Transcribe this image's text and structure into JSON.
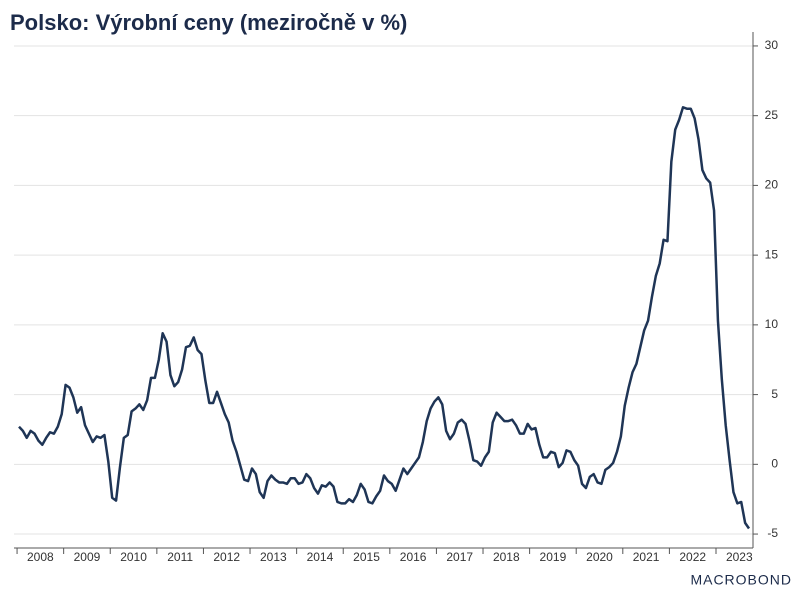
{
  "chart_data": {
    "type": "line",
    "title": "Polsko: Výrobní ceny (meziročně v %)",
    "source_logo": "MACROBOND",
    "categories": [
      null,
      null,
      null,
      null,
      null,
      null,
      "2008",
      null,
      null,
      null,
      null,
      null,
      null,
      null,
      null,
      null,
      null,
      null,
      "2009",
      null,
      null,
      null,
      null,
      null,
      null,
      null,
      null,
      null,
      null,
      null,
      "2010",
      null,
      null,
      null,
      null,
      null,
      null,
      null,
      null,
      null,
      null,
      null,
      "2011",
      null,
      null,
      null,
      null,
      null,
      null,
      null,
      null,
      null,
      null,
      null,
      "2012",
      null,
      null,
      null,
      null,
      null,
      null,
      null,
      null,
      null,
      null,
      null,
      "2013",
      null,
      null,
      null,
      null,
      null,
      null,
      null,
      null,
      null,
      null,
      null,
      "2014",
      null,
      null,
      null,
      null,
      null,
      null,
      null,
      null,
      null,
      null,
      null,
      "2015",
      null,
      null,
      null,
      null,
      null,
      null,
      null,
      null,
      null,
      null,
      null,
      "2016",
      null,
      null,
      null,
      null,
      null,
      null,
      null,
      null,
      null,
      null,
      null,
      "2017",
      null,
      null,
      null,
      null,
      null,
      null,
      null,
      null,
      null,
      null,
      null,
      "2018",
      null,
      null,
      null,
      null,
      null,
      null,
      null,
      null,
      null,
      null,
      null,
      "2019",
      null,
      null,
      null,
      null,
      null,
      null,
      null,
      null,
      null,
      null,
      null,
      "2020",
      null,
      null,
      null,
      null,
      null,
      null,
      null,
      null,
      null,
      null,
      null,
      "2021",
      null,
      null,
      null,
      null,
      null,
      null,
      null,
      null,
      null,
      null,
      null,
      "2022",
      null,
      null,
      null,
      null,
      null,
      null,
      null,
      null,
      null,
      null,
      null,
      "2023",
      null,
      null
    ],
    "series": [
      {
        "name": "Polsko",
        "color": "#1f3556",
        "values": [
          2.7,
          2.4,
          1.9,
          2.4,
          2.2,
          1.7,
          1.4,
          1.9,
          2.3,
          2.2,
          2.7,
          3.6,
          5.7,
          5.5,
          4.8,
          3.7,
          4.1,
          2.8,
          2.2,
          1.6,
          2.0,
          1.9,
          2.1,
          0.2,
          -2.4,
          -2.6,
          -0.2,
          1.9,
          2.1,
          3.8,
          4.0,
          4.3,
          3.9,
          4.6,
          6.2,
          6.2,
          7.5,
          9.4,
          8.8,
          6.4,
          5.6,
          5.9,
          6.8,
          8.4,
          8.5,
          9.1,
          8.2,
          7.9,
          6.0,
          4.4,
          4.4,
          5.2,
          4.4,
          3.6,
          3.0,
          1.7,
          0.9,
          -0.1,
          -1.1,
          -1.2,
          -0.3,
          -0.7,
          -2.0,
          -2.4,
          -1.2,
          -0.8,
          -1.1,
          -1.3,
          -1.3,
          -1.4,
          -1.0,
          -1.0,
          -1.4,
          -1.3,
          -0.7,
          -1.0,
          -1.7,
          -2.1,
          -1.5,
          -1.6,
          -1.3,
          -1.6,
          -2.7,
          -2.8,
          -2.8,
          -2.5,
          -2.7,
          -2.2,
          -1.4,
          -1.8,
          -2.7,
          -2.8,
          -2.3,
          -1.9,
          -0.8,
          -1.2,
          -1.4,
          -1.9,
          -1.1,
          -0.3,
          -0.7,
          -0.3,
          0.1,
          0.5,
          1.6,
          3.1,
          4.0,
          4.5,
          4.8,
          4.3,
          2.4,
          1.8,
          2.2,
          3.0,
          3.2,
          2.9,
          1.7,
          0.3,
          0.2,
          -0.1,
          0.5,
          0.9,
          3.0,
          3.7,
          3.4,
          3.1,
          3.1,
          3.2,
          2.8,
          2.2,
          2.2,
          2.9,
          2.5,
          2.6,
          1.4,
          0.5,
          0.5,
          0.9,
          0.8,
          -0.2,
          0.1,
          1.0,
          0.9,
          0.3,
          -0.1,
          -1.4,
          -1.7,
          -0.9,
          -0.7,
          -1.3,
          -1.4,
          -0.4,
          -0.2,
          0.1,
          0.9,
          2.0,
          4.2,
          5.5,
          6.6,
          7.2,
          8.4,
          9.6,
          10.3,
          12.0,
          13.5,
          14.4,
          16.1,
          16.0,
          21.7,
          24.0,
          24.7,
          25.6,
          25.5,
          25.5,
          24.8,
          23.3,
          21.1,
          20.5,
          20.2,
          18.2,
          10.3,
          6.1,
          2.8,
          0.3,
          -2.0,
          -2.8,
          -2.7,
          -4.2,
          -4.6
        ]
      }
    ],
    "ylim": [
      -6,
      31
    ],
    "yticks": [
      -5,
      0,
      5,
      10,
      15,
      20,
      25,
      30
    ],
    "grid": true,
    "y_axis_side": "right"
  }
}
